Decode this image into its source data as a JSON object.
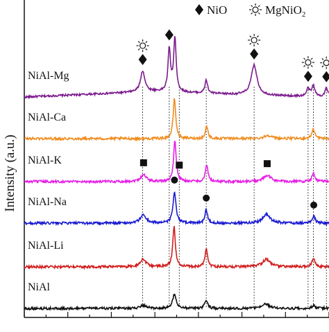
{
  "chart_data": {
    "type": "line",
    "ylabel": "Intensity (a.u.)",
    "xlim": [
      10,
      80
    ],
    "legend": {
      "position": "top-right",
      "items": [
        {
          "marker": "diamond",
          "label": "NiO"
        },
        {
          "marker": "sun",
          "label": "MgNiO",
          "subscript": "2"
        }
      ]
    },
    "series": [
      {
        "name": "NiAl-Mg",
        "color": "#7b1a8c",
        "baseline": [
          [
            10,
            0.0
          ],
          [
            40,
            0.25
          ],
          [
            60,
            0.1
          ],
          [
            80,
            0.0
          ]
        ],
        "peaks": [
          [
            37.2,
            0.95,
            0.6
          ],
          [
            43.3,
            1.9,
            0.35
          ],
          [
            44.6,
            2.4,
            0.35
          ],
          [
            51.8,
            0.6,
            0.35
          ],
          [
            62.8,
            1.35,
            0.8
          ],
          [
            75.2,
            0.35,
            0.4
          ],
          [
            76.4,
            0.5,
            0.4
          ],
          [
            79.4,
            0.4,
            0.4
          ]
        ]
      },
      {
        "name": "NiAl-Ca",
        "color": "#f08c1e",
        "baseline": [
          [
            10,
            0.0
          ],
          [
            80,
            0.0
          ]
        ],
        "peaks": [
          [
            44.5,
            1.45,
            0.35
          ],
          [
            51.9,
            0.45,
            0.35
          ],
          [
            66.0,
            0.12,
            1.0
          ],
          [
            76.4,
            0.35,
            0.4
          ]
        ]
      },
      {
        "name": "NiAl-K",
        "color": "#e61ee6",
        "baseline": [
          [
            10,
            0.0
          ],
          [
            80,
            0.0
          ]
        ],
        "peaks": [
          [
            37.4,
            0.25,
            0.8
          ],
          [
            44.6,
            1.5,
            0.35
          ],
          [
            51.9,
            0.6,
            0.35
          ],
          [
            65.8,
            0.22,
            1.0
          ],
          [
            76.4,
            0.3,
            0.4
          ]
        ]
      },
      {
        "name": "NiAl-Na",
        "color": "#1a1ad2",
        "baseline": [
          [
            10,
            0.0
          ],
          [
            80,
            0.0
          ]
        ],
        "peaks": [
          [
            37.3,
            0.3,
            0.8
          ],
          [
            44.5,
            1.15,
            0.4
          ],
          [
            51.8,
            0.5,
            0.35
          ],
          [
            65.6,
            0.32,
            1.0
          ],
          [
            76.5,
            0.25,
            0.4
          ]
        ]
      },
      {
        "name": "NiAl-Li",
        "color": "#d21c1c",
        "baseline": [
          [
            10,
            0.0
          ],
          [
            80,
            0.0
          ]
        ],
        "peaks": [
          [
            37.3,
            0.28,
            0.8
          ],
          [
            44.4,
            1.45,
            0.35
          ],
          [
            51.8,
            0.65,
            0.35
          ],
          [
            65.6,
            0.28,
            1.0
          ],
          [
            76.4,
            0.3,
            0.4
          ]
        ]
      },
      {
        "name": "NiAl",
        "color": "#111111",
        "baseline": [
          [
            10,
            0.0
          ],
          [
            80,
            0.0
          ]
        ],
        "peaks": [
          [
            37.3,
            0.12,
            0.8
          ],
          [
            44.5,
            0.5,
            0.5
          ],
          [
            51.8,
            0.3,
            0.4
          ],
          [
            65.5,
            0.15,
            1.0
          ],
          [
            76.5,
            0.12,
            0.4
          ]
        ]
      }
    ],
    "markers": [
      {
        "symbol": "sun",
        "x": 37.2,
        "series": "NiAl-Mg"
      },
      {
        "symbol": "diamond",
        "x": 37.2,
        "series": "NiAl-Mg"
      },
      {
        "symbol": "diamond",
        "x": 43.3,
        "series": "NiAl-Mg"
      },
      {
        "symbol": "sun",
        "x": 62.8,
        "series": "NiAl-Mg"
      },
      {
        "symbol": "diamond",
        "x": 62.8,
        "series": "NiAl-Mg"
      },
      {
        "symbol": "sun",
        "x": 75.2,
        "series": "NiAl-Mg"
      },
      {
        "symbol": "diamond",
        "x": 75.2,
        "series": "NiAl-Mg"
      },
      {
        "symbol": "sun",
        "x": 79.4,
        "series": "NiAl-Mg"
      },
      {
        "symbol": "diamond",
        "x": 79.4,
        "series": "NiAl-Mg"
      },
      {
        "symbol": "square",
        "x": 37.4,
        "series": "NiAl-K"
      },
      {
        "symbol": "square",
        "x": 45.6,
        "series": "NiAl-K"
      },
      {
        "symbol": "square",
        "x": 65.8,
        "series": "NiAl-K"
      },
      {
        "symbol": "circle",
        "x": 44.5,
        "series": "NiAl-Na"
      },
      {
        "symbol": "circle",
        "x": 51.8,
        "series": "NiAl-Na"
      },
      {
        "symbol": "circle",
        "x": 76.5,
        "series": "NiAl-Na"
      }
    ],
    "reference_lines_x": [
      37.2,
      43.3,
      45.6,
      51.8,
      62.8,
      75.2,
      76.4,
      79.4
    ]
  }
}
